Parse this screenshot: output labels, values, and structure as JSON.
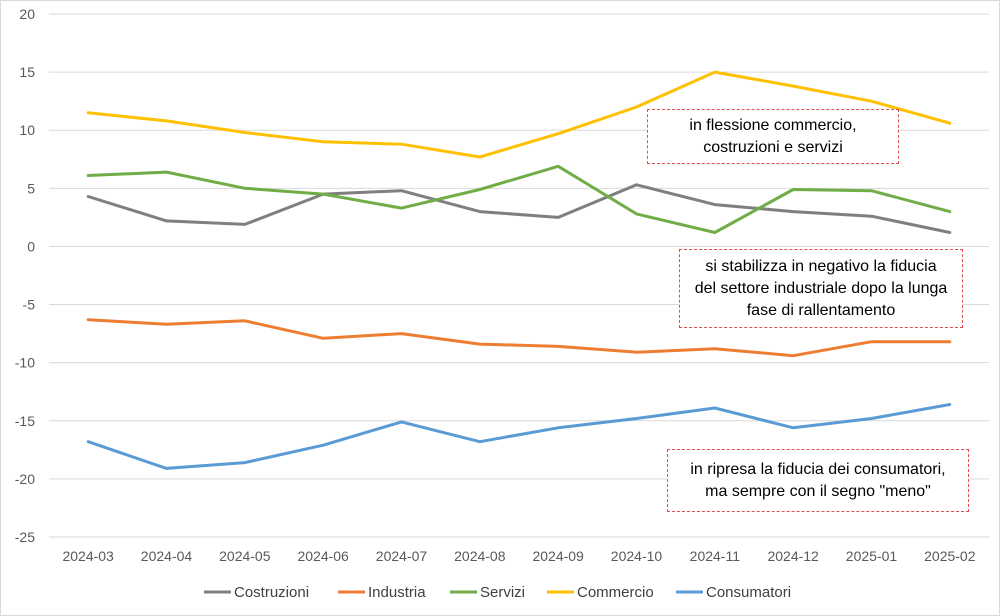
{
  "chart_data": {
    "type": "line",
    "categories": [
      "2024-03",
      "2024-04",
      "2024-05",
      "2024-06",
      "2024-07",
      "2024-08",
      "2024-09",
      "2024-10",
      "2024-11",
      "2024-12",
      "2025-01",
      "2025-02"
    ],
    "series": [
      {
        "name": "Costruzioni",
        "color": "#7f7f7f",
        "values": [
          4.3,
          2.2,
          1.9,
          4.5,
          4.8,
          3.0,
          2.5,
          5.3,
          3.6,
          3.0,
          2.6,
          1.2
        ]
      },
      {
        "name": "Industria",
        "color": "#ed7d31",
        "values": [
          -6.3,
          -6.7,
          -6.4,
          -7.9,
          -7.5,
          -8.4,
          -8.6,
          -9.1,
          -8.8,
          -9.4,
          -8.2,
          -8.2
        ]
      },
      {
        "name": "Servizi",
        "color": "#70ad47",
        "values": [
          6.1,
          6.4,
          5.0,
          4.5,
          3.3,
          4.9,
          6.9,
          2.8,
          1.2,
          4.9,
          4.8,
          3.0
        ]
      },
      {
        "name": "Commercio",
        "color": "#ffc000",
        "values": [
          11.5,
          10.8,
          9.8,
          9.0,
          8.8,
          7.7,
          9.7,
          12.0,
          15.0,
          13.8,
          12.5,
          10.6
        ]
      },
      {
        "name": "Consumatori",
        "color": "#5b9bd5",
        "values": [
          -16.8,
          -19.1,
          -18.6,
          -17.1,
          -15.1,
          -16.8,
          -15.6,
          -14.8,
          -13.9,
          -15.6,
          -14.8,
          -13.6
        ]
      }
    ],
    "ylim": [
      -25,
      20
    ],
    "yticks": [
      "20",
      "15",
      "10",
      "5",
      "0",
      "-5",
      "-10",
      "-15",
      "-20",
      "-25"
    ],
    "grid": true,
    "legend": "bottom",
    "annotations": [
      {
        "text": "in flessione commercio,\ncostruzioni e servizi"
      },
      {
        "text": "si stabilizza in negativo  la fiducia\ndel settore industriale dopo la lunga\nfase di rallentamento"
      },
      {
        "text": "in  ripresa la fiducia dei consumatori,\nma sempre con il segno \"meno\""
      }
    ]
  }
}
